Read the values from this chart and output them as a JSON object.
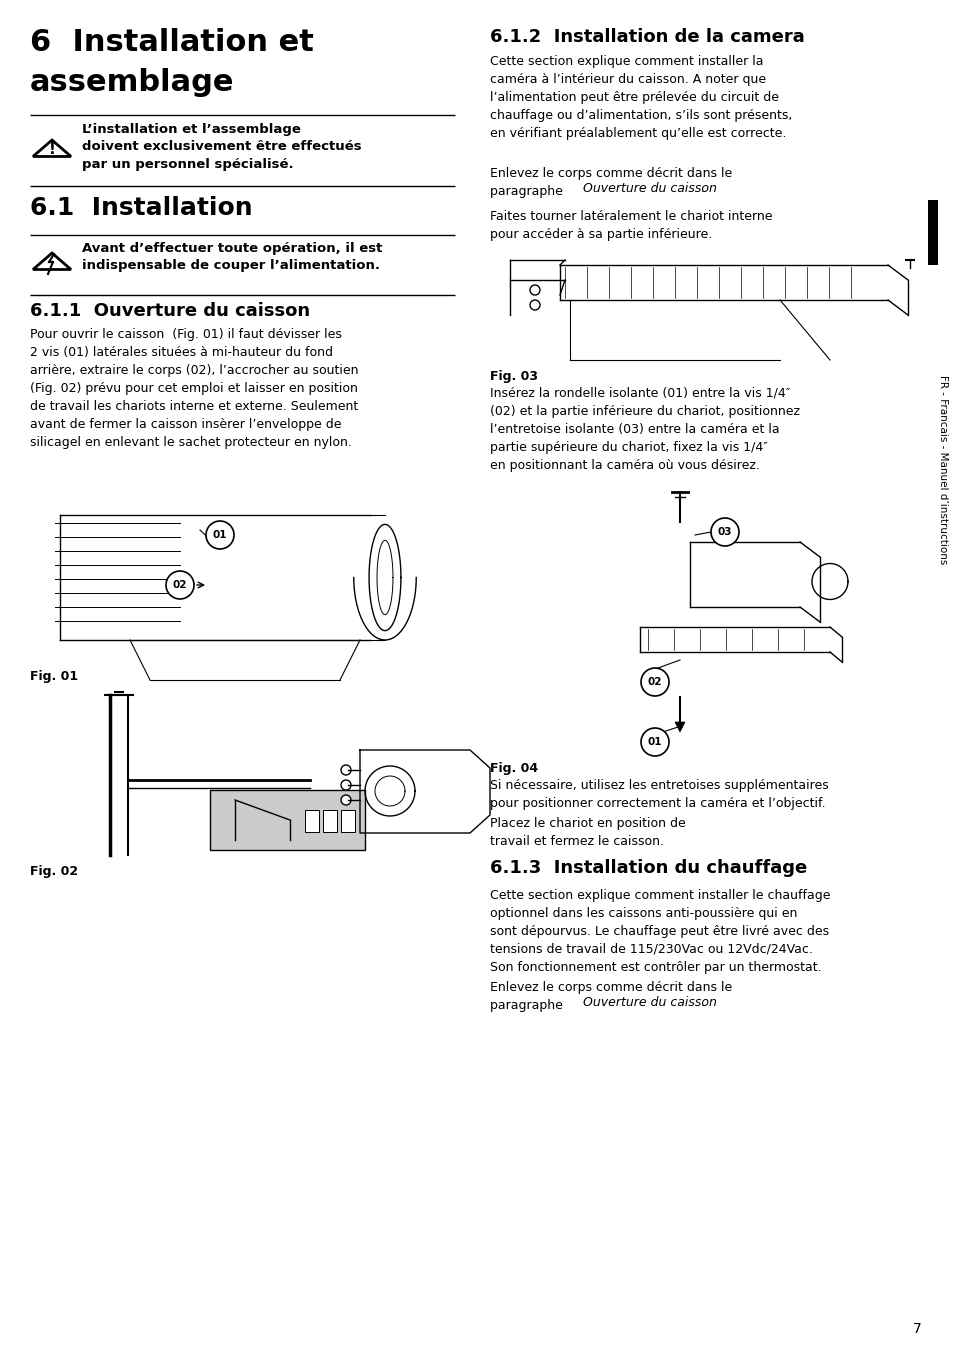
{
  "bg_color": "#ffffff",
  "page_number": "7",
  "main_title_line1": "6  Installation et",
  "main_title_line2": "assemblage",
  "warning1_text": "L’installation et l’assemblage\ndoivent exclusivement être effectués\npar un personnel spécialisé.",
  "section_61_title": "6.1  Installation",
  "warning2_text": "Avant d’effectuer toute opération, il est\nindispensable de couper l’alimentation.",
  "section_611_title": "6.1.1  Ouverture du caisson",
  "section_611_body": "Pour ouvrir le caisson  (Fig. 01) il faut dévisser les\n2 vis (01) latérales situées à mi-hauteur du fond\narrière, extraire le corps (02), l’accrocher au soutien\n(Fig. 02) prévu pour cet emploi et laisser en position\nde travail les chariots interne et externe. Seulement\navant de fermer la caisson insèrer l’enveloppe de\nsilicagel en enlevant le sachet protecteur en nylon.",
  "section_612_title": "6.1.2  Installation de la camera",
  "section_612_body1": "Cette section explique comment installer la\ncaméra à l’intérieur du caisson. A noter que\nl’alimentation peut être prélevée du circuit de\nchauffage ou d’alimentation, s’ils sont présents,\nen vérifiant préalablement qu’elle est correcte.",
  "section_612_body2_a": "Enlevez le corps comme décrit dans le\nparagraphe ",
  "section_612_body2_italic": "Ouverture du caisson",
  "section_612_body2_b": ".",
  "section_612_body3": "Faites tourner latéralement le chariot interne\npour accéder à sa partie inférieure.",
  "section_612_body4": "Insérez la rondelle isolante (01) entre la vis 1/4″\n(02) et la partie inférieure du chariot, positionnez\nl’entretoise isolante (03) entre la caméra et la\npartie supérieure du chariot, fixez la vis 1/4″\nen positionnant la caméra où vous désirez.",
  "section_612_body5": "Si nécessaire, utilisez les entretoises supplémentaires\npour positionner correctement la caméra et l’objectif.",
  "section_612_body6": "Placez le chariot en position de\ntravail et fermez le caisson.",
  "section_613_title": "6.1.3  Installation du chauffage",
  "section_613_body1": "Cette section explique comment installer le chauffage\noptionnel dans les caissons anti-poussière qui en\nsont dépourvus. Le chauffage peut être livré avec des\ntensions de travail de 115/230Vac ou 12Vdc/24Vac.\nSon fonctionnement est contrôler par un thermostat.",
  "section_613_body2_a": "Enlevez le corps comme décrit dans le\nparagraphe ",
  "section_613_body2_italic": "Ouverture du caisson",
  "section_613_body2_b": ".",
  "sidebar_text": "FR - Francais - Manuel d’instructions"
}
